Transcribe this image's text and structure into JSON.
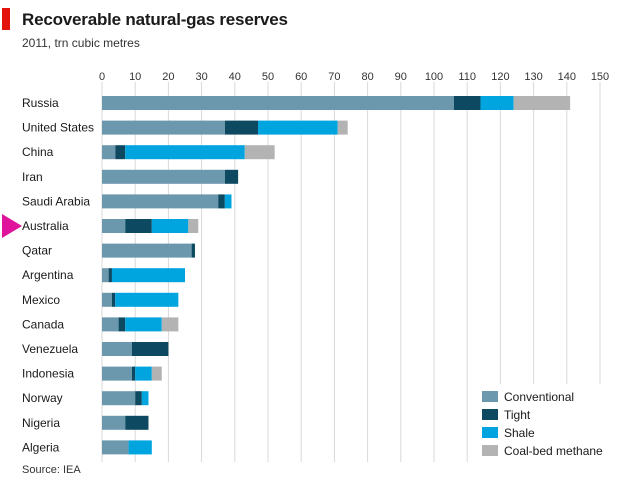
{
  "header": {
    "title": "Recoverable natural-gas reserves",
    "subtitle": "2011, trn cubic metres"
  },
  "footer": {
    "source": "Source: IEA"
  },
  "colors": {
    "conventional": "#6b98ad",
    "tight": "#0d4a62",
    "shale": "#00a5df",
    "coal_bed_methane": "#b3b3b3",
    "grid": "#d9d9d9",
    "title_tag": "#e3120b",
    "cursor": "#e0139d"
  },
  "chart_data": {
    "type": "bar",
    "orientation": "horizontal",
    "stacked": true,
    "title": "Recoverable natural-gas reserves",
    "subtitle": "2011, trn cubic metres",
    "xlim": [
      0,
      150
    ],
    "xticks": [
      0,
      10,
      20,
      30,
      40,
      50,
      60,
      70,
      80,
      90,
      100,
      110,
      120,
      130,
      140,
      150
    ],
    "xaxis_position": "top",
    "grid": true,
    "legend_position": "bottom-right",
    "categories": [
      "Russia",
      "United States",
      "China",
      "Iran",
      "Saudi Arabia",
      "Australia",
      "Qatar",
      "Argentina",
      "Mexico",
      "Canada",
      "Venezuela",
      "Indonesia",
      "Norway",
      "Nigeria",
      "Algeria"
    ],
    "series": [
      {
        "name": "Conventional",
        "color": "#6b98ad",
        "values": [
          106,
          37,
          4,
          37,
          35,
          7,
          27,
          2,
          3,
          5,
          9,
          9,
          10,
          7,
          8
        ]
      },
      {
        "name": "Tight",
        "color": "#0d4a62",
        "values": [
          8,
          10,
          3,
          4,
          2,
          8,
          1,
          1,
          1,
          2,
          11,
          1,
          2,
          7,
          0
        ]
      },
      {
        "name": "Shale",
        "color": "#00a5df",
        "values": [
          10,
          24,
          36,
          0,
          2,
          11,
          0,
          22,
          19,
          11,
          0,
          5,
          2,
          0,
          7
        ]
      },
      {
        "name": "Coal-bed methane",
        "color": "#b3b3b3",
        "values": [
          17,
          3,
          9,
          0,
          0,
          3,
          0,
          0,
          0,
          5,
          0,
          3,
          0,
          0,
          0
        ]
      }
    ]
  }
}
